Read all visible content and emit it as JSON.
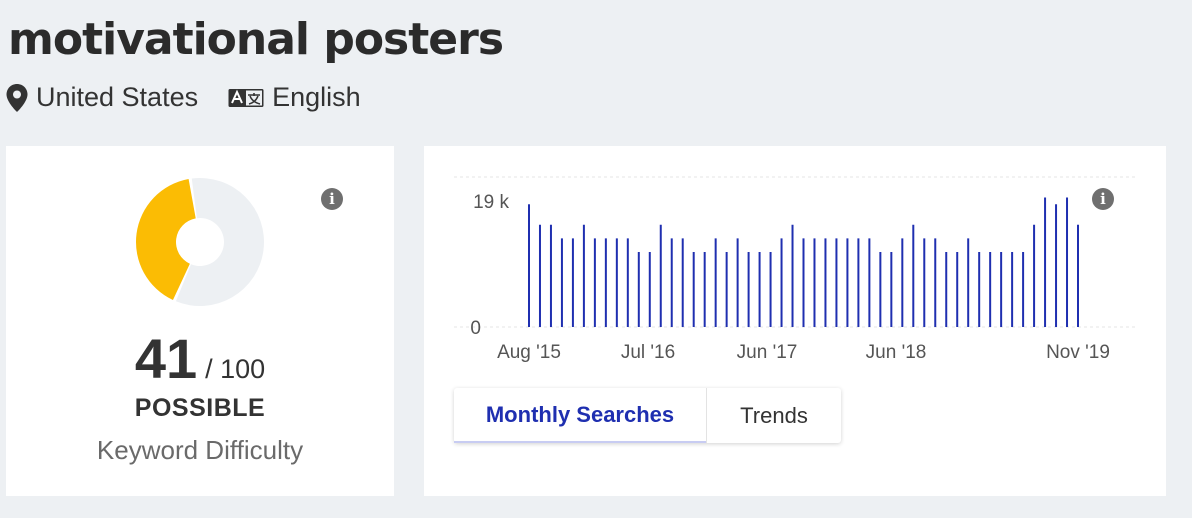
{
  "keyword": "motivational posters",
  "meta": {
    "country": "United States",
    "language": "English",
    "location_icon": "map-pin-icon",
    "language_icon": "translate-icon"
  },
  "difficulty": {
    "value": "41",
    "max": "/ 100",
    "level": "POSSIBLE",
    "caption": "Keyword Difficulty",
    "fraction": 0.41,
    "colors": {
      "filled": "#fbbc04",
      "empty": "#edf0f3"
    }
  },
  "tabs": {
    "monthly": "Monthly Searches",
    "trends": "Trends"
  },
  "chart_data": {
    "type": "bar",
    "ylim": [
      0,
      22000
    ],
    "y_ticks": [
      "0",
      "19 k"
    ],
    "x_ticks": [
      "Aug '15",
      "Jul '16",
      "Jun '17",
      "Jun '18",
      "Nov '19"
    ],
    "bar_color": "#1f2fb0",
    "values": [
      18000,
      15000,
      15000,
      13000,
      13000,
      15000,
      13000,
      13000,
      13000,
      13000,
      11000,
      11000,
      15000,
      13000,
      13000,
      11000,
      11000,
      13000,
      11000,
      13000,
      11000,
      11000,
      11000,
      13000,
      15000,
      13000,
      13000,
      13000,
      13000,
      13000,
      13000,
      13000,
      11000,
      11000,
      13000,
      15000,
      13000,
      13000,
      11000,
      11000,
      13000,
      11000,
      11000,
      11000,
      11000,
      11000,
      15000,
      19000,
      18000,
      19000,
      15000
    ]
  }
}
